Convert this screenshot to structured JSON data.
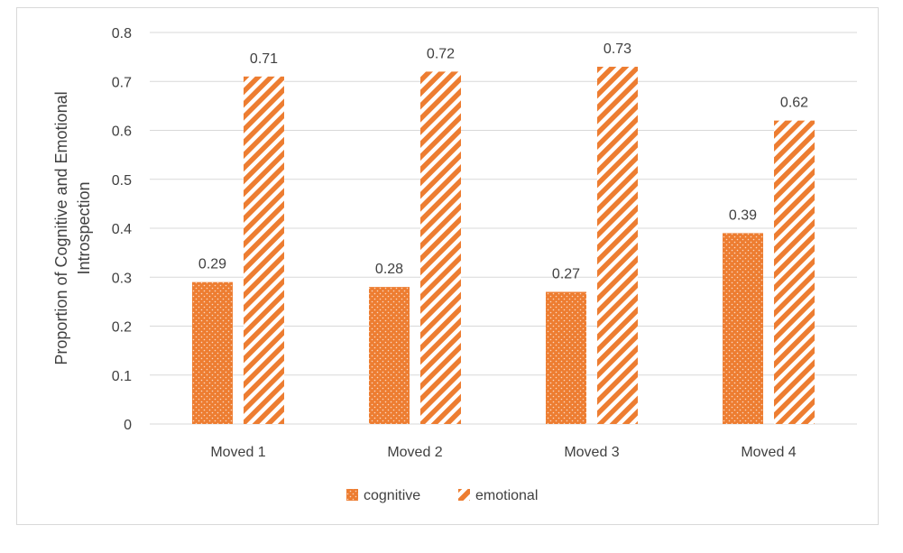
{
  "chart_data": {
    "type": "bar",
    "categories": [
      "Moved 1",
      "Moved 2",
      "Moved 3",
      "Moved 4"
    ],
    "series": [
      {
        "name": "cognitive",
        "values": [
          0.29,
          0.28,
          0.27,
          0.39
        ],
        "pattern": "dotted"
      },
      {
        "name": "emotional",
        "values": [
          0.71,
          0.72,
          0.73,
          0.62
        ],
        "pattern": "diagonal-stripes"
      }
    ],
    "y_ticks": [
      "0",
      "0.1",
      "0.2",
      "0.3",
      "0.4",
      "0.5",
      "0.6",
      "0.7",
      "0.8"
    ],
    "ylim": [
      0,
      0.8
    ],
    "ylabel_lines": [
      "Proportion of Cognitive and Emotional",
      "Introspection"
    ],
    "xlabel": "",
    "title": "",
    "grid": true,
    "legend_position": "bottom",
    "colors": {
      "bar": "#ED7D31",
      "grid": "#d9d9d9",
      "text": "#404040"
    }
  }
}
